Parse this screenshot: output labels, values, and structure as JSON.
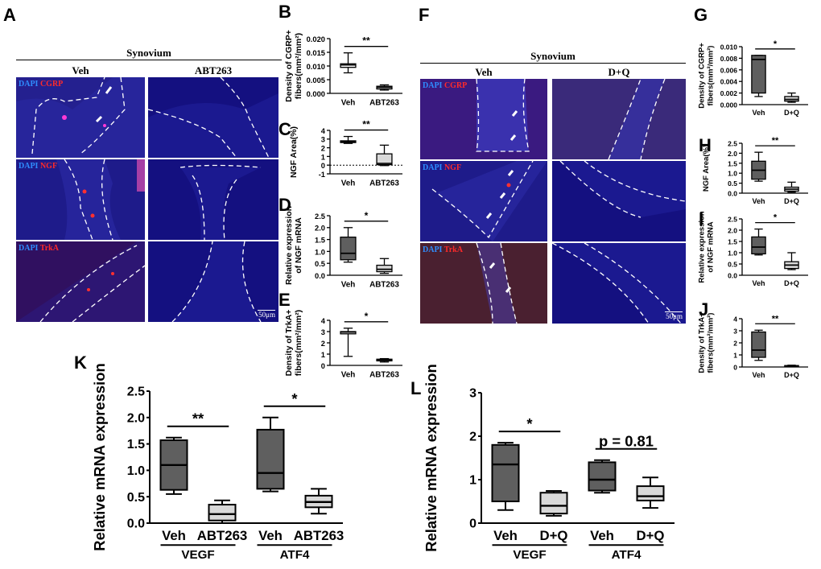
{
  "panel_letters": {
    "A": "A",
    "B": "B",
    "C": "C",
    "D": "D",
    "E": "E",
    "F": "F",
    "G": "G",
    "H": "H",
    "I": "I",
    "J": "J",
    "K": "K",
    "L": "L"
  },
  "microscopy": {
    "left": {
      "tissue": "Synovium",
      "col1": "Veh",
      "col2": "ABT263",
      "scale": "50μm"
    },
    "right": {
      "tissue": "Synovium",
      "col1": "Veh",
      "col2": "D+Q",
      "scale": "50μm"
    },
    "dapi": "DAPI",
    "markers": [
      "CGRP",
      "NGF",
      "TrkA"
    ]
  },
  "colors": {
    "dark_box": "#5f5f5f",
    "light_box": "#d9d9d9",
    "nuclei": "#3a5cff",
    "tissue_bg": "#1c1a8c"
  },
  "chart_data": [
    {
      "id": "B",
      "type": "box",
      "ylabel": "Density of CGRP+ fibers(mm²/mm²)",
      "ylim": [
        0,
        0.02
      ],
      "yticks": [
        "0.000",
        "0.005",
        "0.010",
        "0.015",
        "0.020"
      ],
      "categories": [
        "Veh",
        "ABT263"
      ],
      "fills": [
        "#ffffff",
        "#ffffff"
      ],
      "boxes": [
        {
          "min": 0.0075,
          "q1": 0.0095,
          "median": 0.0104,
          "q3": 0.0108,
          "max": 0.0148
        },
        {
          "min": 0.0012,
          "q1": 0.0016,
          "median": 0.0022,
          "q3": 0.0026,
          "max": 0.0031
        }
      ],
      "sig": "**"
    },
    {
      "id": "C",
      "type": "box",
      "ylabel": "NGF Area(%)",
      "ylim": [
        -1,
        4
      ],
      "yticks": [
        "-1",
        "0",
        "1",
        "2",
        "3",
        "4"
      ],
      "categories": [
        "Veh",
        "ABT263"
      ],
      "fills": [
        "#5f5f5f",
        "#d9d9d9"
      ],
      "zero_line": true,
      "boxes": [
        {
          "min": 2.5,
          "q1": 2.6,
          "median": 2.7,
          "q3": 2.8,
          "max": 3.3
        },
        {
          "min": -0.05,
          "q1": 0.05,
          "median": 0.2,
          "q3": 1.3,
          "max": 2.3
        }
      ],
      "sig": "**"
    },
    {
      "id": "D",
      "type": "box",
      "ylabel": "Relative expression of NGF mRNA",
      "ylim": [
        0,
        2.5
      ],
      "yticks": [
        "0.0",
        "0.5",
        "1.0",
        "1.5",
        "2.0",
        "2.5"
      ],
      "categories": [
        "Veh",
        "ABT263"
      ],
      "fills": [
        "#5f5f5f",
        "#d9d9d9"
      ],
      "boxes": [
        {
          "min": 0.55,
          "q1": 0.65,
          "median": 0.92,
          "q3": 1.6,
          "max": 2.0
        },
        {
          "min": 0.08,
          "q1": 0.15,
          "median": 0.25,
          "q3": 0.42,
          "max": 0.7
        }
      ],
      "sig": "*"
    },
    {
      "id": "E",
      "type": "box",
      "ylabel": "Density of TrkA+ fibers(mm²/mm²)",
      "ylim": [
        0,
        4
      ],
      "yticks": [
        "0",
        "1",
        "2",
        "3",
        "4"
      ],
      "categories": [
        "Veh",
        "ABT263"
      ],
      "fills": [
        "#ffffff",
        "#ffffff"
      ],
      "boxes": [
        {
          "min": 0.8,
          "q1": 2.8,
          "median": 2.95,
          "q3": 3.0,
          "max": 3.3
        },
        {
          "min": 0.3,
          "q1": 0.4,
          "median": 0.5,
          "q3": 0.55,
          "max": 0.6
        }
      ],
      "sig": "*"
    },
    {
      "id": "G",
      "type": "box",
      "ylabel": "Density of CGRP+ fibers(mm²/mm²)",
      "ylim": [
        0,
        0.01
      ],
      "yticks": [
        "0.000",
        "0.002",
        "0.004",
        "0.006",
        "0.008",
        "0.010"
      ],
      "categories": [
        "Veh",
        "D+Q"
      ],
      "fills": [
        "#5f5f5f",
        "#d9d9d9"
      ],
      "boxes": [
        {
          "min": 0.0014,
          "q1": 0.002,
          "median": 0.0078,
          "q3": 0.0085,
          "max": 0.0085
        },
        {
          "min": 0.0004,
          "q1": 0.0006,
          "median": 0.0009,
          "q3": 0.0014,
          "max": 0.002
        }
      ],
      "sig": "*"
    },
    {
      "id": "H",
      "type": "box",
      "ylabel": "NGF Area(%)",
      "ylim": [
        0,
        2.5
      ],
      "yticks": [
        "0.0",
        "0.5",
        "1.0",
        "1.5",
        "2.0",
        "2.5"
      ],
      "categories": [
        "Veh",
        "D+Q"
      ],
      "fills": [
        "#5f5f5f",
        "#d9d9d9"
      ],
      "boxes": [
        {
          "min": 0.6,
          "q1": 0.7,
          "median": 1.15,
          "q3": 1.6,
          "max": 2.05
        },
        {
          "min": 0.05,
          "q1": 0.1,
          "median": 0.2,
          "q3": 0.3,
          "max": 0.55
        }
      ],
      "sig": "**"
    },
    {
      "id": "I",
      "type": "box",
      "ylabel": "Relative expression of NGF mRNA",
      "ylim": [
        0,
        2.5
      ],
      "yticks": [
        "0.0",
        "0.5",
        "1.0",
        "1.5",
        "2.0",
        "2.5"
      ],
      "categories": [
        "Veh",
        "D+Q"
      ],
      "fills": [
        "#5f5f5f",
        "#d9d9d9"
      ],
      "boxes": [
        {
          "min": 0.9,
          "q1": 0.95,
          "median": 1.25,
          "q3": 1.7,
          "max": 2.05
        },
        {
          "min": 0.25,
          "q1": 0.3,
          "median": 0.45,
          "q3": 0.6,
          "max": 1.0
        }
      ],
      "sig": "*"
    },
    {
      "id": "J",
      "type": "box",
      "ylabel": "Density of TrkA+ fibers(mm²/mm²)",
      "ylim": [
        0,
        4
      ],
      "yticks": [
        "0",
        "1",
        "2",
        "3",
        "4"
      ],
      "categories": [
        "Veh",
        "D+Q"
      ],
      "fills": [
        "#5f5f5f",
        "#d9d9d9"
      ],
      "boxes": [
        {
          "min": 0.55,
          "q1": 0.8,
          "median": 1.4,
          "q3": 2.9,
          "max": 3.05
        },
        {
          "min": 0.02,
          "q1": 0.05,
          "median": 0.08,
          "q3": 0.12,
          "max": 0.15
        }
      ],
      "sig": "**"
    },
    {
      "id": "K",
      "type": "box",
      "ylabel": "Relative mRNA expression",
      "ylim": [
        0,
        2.5
      ],
      "yticks": [
        "0.0",
        "0.5",
        "1.0",
        "1.5",
        "2.0",
        "2.5"
      ],
      "categories": [
        "Veh",
        "ABT263",
        "Veh",
        "ABT263"
      ],
      "groups": [
        "VEGF",
        "ATF4"
      ],
      "fills": [
        "#5f5f5f",
        "#d9d9d9",
        "#5f5f5f",
        "#d9d9d9"
      ],
      "boxes": [
        {
          "min": 0.55,
          "q1": 0.63,
          "median": 1.1,
          "q3": 1.57,
          "max": 1.62
        },
        {
          "min": 0.0,
          "q1": 0.05,
          "median": 0.17,
          "q3": 0.35,
          "max": 0.43
        },
        {
          "min": 0.6,
          "q1": 0.65,
          "median": 0.95,
          "q3": 1.77,
          "max": 2.0
        },
        {
          "min": 0.18,
          "q1": 0.3,
          "median": 0.4,
          "q3": 0.52,
          "max": 0.65
        }
      ],
      "sigs": [
        {
          "label": "**",
          "pair": [
            0,
            1
          ]
        },
        {
          "label": "*",
          "pair": [
            2,
            3
          ]
        }
      ]
    },
    {
      "id": "L",
      "type": "box",
      "ylabel": "Relative mRNA expression",
      "ylim": [
        0,
        3
      ],
      "yticks": [
        "0",
        "1",
        "2",
        "3"
      ],
      "categories": [
        "Veh",
        "D+Q",
        "Veh",
        "D+Q"
      ],
      "groups": [
        "VEGF",
        "ATF4"
      ],
      "fills": [
        "#5f5f5f",
        "#d9d9d9",
        "#5f5f5f",
        "#d9d9d9"
      ],
      "boxes": [
        {
          "min": 0.3,
          "q1": 0.5,
          "median": 1.35,
          "q3": 1.8,
          "max": 1.85
        },
        {
          "min": 0.17,
          "q1": 0.22,
          "median": 0.4,
          "q3": 0.7,
          "max": 0.74
        },
        {
          "min": 0.7,
          "q1": 0.75,
          "median": 1.0,
          "q3": 1.4,
          "max": 1.45
        },
        {
          "min": 0.35,
          "q1": 0.52,
          "median": 0.62,
          "q3": 0.85,
          "max": 1.05
        }
      ],
      "sigs": [
        {
          "label": "*",
          "pair": [
            0,
            1
          ]
        },
        {
          "label": "p = 0.81",
          "pair": [
            2,
            3
          ]
        }
      ]
    }
  ]
}
